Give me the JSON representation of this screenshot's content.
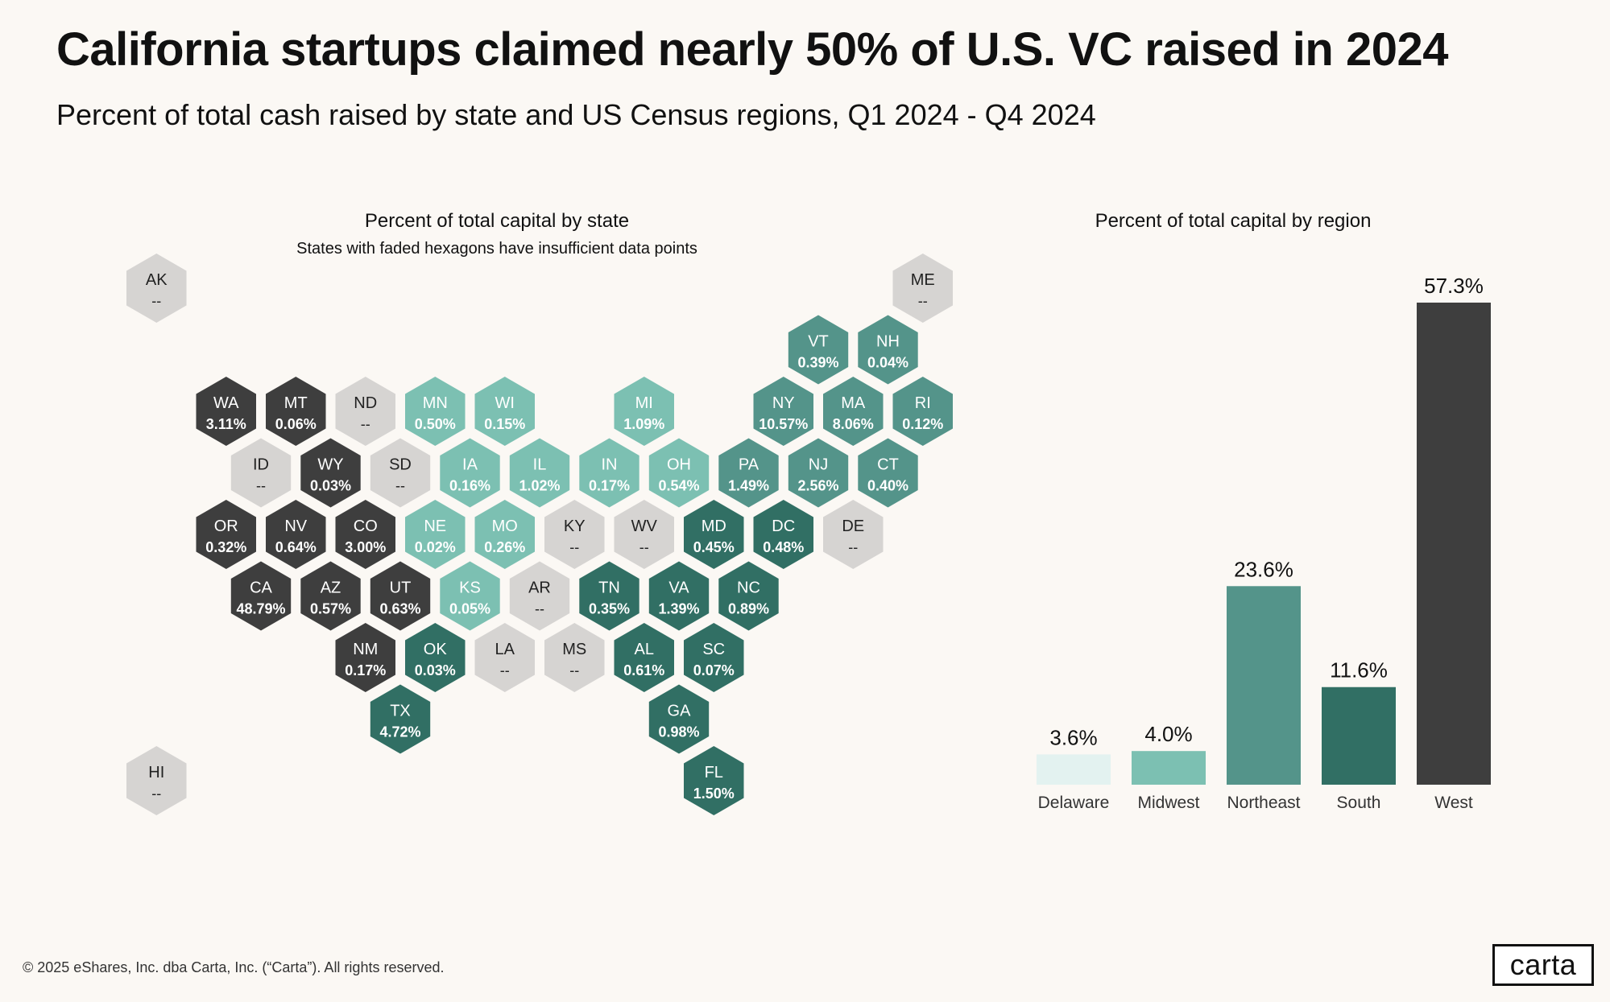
{
  "title": "California startups claimed nearly 50% of U.S. VC raised in 2024",
  "subtitle": "Percent of total cash raised by state and US Census regions, Q1 2024 - Q4 2024",
  "footer": "© 2025 eShares, Inc. dba Carta, Inc. (“Carta”). All rights reserved.",
  "logo_text": "carta",
  "colors": {
    "west": "#3e3e3e",
    "midwest": "#7cc0b2",
    "northeast": "#54948a",
    "south": "#316f64",
    "delaware": "#e3f2f0",
    "insufficient": "#d6d4d2",
    "background": "#fbf8f4"
  },
  "chart_data": [
    {
      "type": "hexmap",
      "title": "Percent of total capital by state",
      "subtitle": "States with faded hexagons have insufficient data points",
      "missing_label": "--",
      "states": [
        {
          "code": "AK",
          "value": null,
          "region": "insufficient",
          "row": 0,
          "col": 0.5
        },
        {
          "code": "ME",
          "value": null,
          "region": "insufficient",
          "row": 0,
          "col": 11.5
        },
        {
          "code": "VT",
          "value": "0.39%",
          "region": "northeast",
          "row": 1,
          "col": 10
        },
        {
          "code": "NH",
          "value": "0.04%",
          "region": "northeast",
          "row": 1,
          "col": 11
        },
        {
          "code": "WA",
          "value": "3.11%",
          "region": "west",
          "row": 2,
          "col": 1.5
        },
        {
          "code": "MT",
          "value": "0.06%",
          "region": "west",
          "row": 2,
          "col": 2.5
        },
        {
          "code": "ND",
          "value": null,
          "region": "insufficient",
          "row": 2,
          "col": 3.5
        },
        {
          "code": "MN",
          "value": "0.50%",
          "region": "midwest",
          "row": 2,
          "col": 4.5
        },
        {
          "code": "WI",
          "value": "0.15%",
          "region": "midwest",
          "row": 2,
          "col": 5.5
        },
        {
          "code": "MI",
          "value": "1.09%",
          "region": "midwest",
          "row": 2,
          "col": 7.5
        },
        {
          "code": "NY",
          "value": "10.57%",
          "region": "northeast",
          "row": 2,
          "col": 9.5
        },
        {
          "code": "MA",
          "value": "8.06%",
          "region": "northeast",
          "row": 2,
          "col": 10.5
        },
        {
          "code": "RI",
          "value": "0.12%",
          "region": "northeast",
          "row": 2,
          "col": 11.5
        },
        {
          "code": "ID",
          "value": null,
          "region": "insufficient",
          "row": 3,
          "col": 2
        },
        {
          "code": "WY",
          "value": "0.03%",
          "region": "west",
          "row": 3,
          "col": 3
        },
        {
          "code": "SD",
          "value": null,
          "region": "insufficient",
          "row": 3,
          "col": 4
        },
        {
          "code": "IA",
          "value": "0.16%",
          "region": "midwest",
          "row": 3,
          "col": 5
        },
        {
          "code": "IL",
          "value": "1.02%",
          "region": "midwest",
          "row": 3,
          "col": 6
        },
        {
          "code": "IN",
          "value": "0.17%",
          "region": "midwest",
          "row": 3,
          "col": 7
        },
        {
          "code": "OH",
          "value": "0.54%",
          "region": "midwest",
          "row": 3,
          "col": 8
        },
        {
          "code": "PA",
          "value": "1.49%",
          "region": "northeast",
          "row": 3,
          "col": 9
        },
        {
          "code": "NJ",
          "value": "2.56%",
          "region": "northeast",
          "row": 3,
          "col": 10
        },
        {
          "code": "CT",
          "value": "0.40%",
          "region": "northeast",
          "row": 3,
          "col": 11
        },
        {
          "code": "OR",
          "value": "0.32%",
          "region": "west",
          "row": 4,
          "col": 1.5
        },
        {
          "code": "NV",
          "value": "0.64%",
          "region": "west",
          "row": 4,
          "col": 2.5
        },
        {
          "code": "CO",
          "value": "3.00%",
          "region": "west",
          "row": 4,
          "col": 3.5
        },
        {
          "code": "NE",
          "value": "0.02%",
          "region": "midwest",
          "row": 4,
          "col": 4.5
        },
        {
          "code": "MO",
          "value": "0.26%",
          "region": "midwest",
          "row": 4,
          "col": 5.5
        },
        {
          "code": "KY",
          "value": null,
          "region": "insufficient",
          "row": 4,
          "col": 6.5
        },
        {
          "code": "WV",
          "value": null,
          "region": "insufficient",
          "row": 4,
          "col": 7.5
        },
        {
          "code": "MD",
          "value": "0.45%",
          "region": "south",
          "row": 4,
          "col": 8.5
        },
        {
          "code": "DC",
          "value": "0.48%",
          "region": "south",
          "row": 4,
          "col": 9.5
        },
        {
          "code": "DE",
          "value": null,
          "region": "insufficient",
          "row": 4,
          "col": 10.5
        },
        {
          "code": "CA",
          "value": "48.79%",
          "region": "west",
          "row": 5,
          "col": 2
        },
        {
          "code": "AZ",
          "value": "0.57%",
          "region": "west",
          "row": 5,
          "col": 3
        },
        {
          "code": "UT",
          "value": "0.63%",
          "region": "west",
          "row": 5,
          "col": 4
        },
        {
          "code": "KS",
          "value": "0.05%",
          "region": "midwest",
          "row": 5,
          "col": 5
        },
        {
          "code": "AR",
          "value": null,
          "region": "insufficient",
          "row": 5,
          "col": 6
        },
        {
          "code": "TN",
          "value": "0.35%",
          "region": "south",
          "row": 5,
          "col": 7
        },
        {
          "code": "VA",
          "value": "1.39%",
          "region": "south",
          "row": 5,
          "col": 8
        },
        {
          "code": "NC",
          "value": "0.89%",
          "region": "south",
          "row": 5,
          "col": 9
        },
        {
          "code": "NM",
          "value": "0.17%",
          "region": "west",
          "row": 6,
          "col": 3.5
        },
        {
          "code": "OK",
          "value": "0.03%",
          "region": "south",
          "row": 6,
          "col": 4.5
        },
        {
          "code": "LA",
          "value": null,
          "region": "insufficient",
          "row": 6,
          "col": 5.5
        },
        {
          "code": "MS",
          "value": null,
          "region": "insufficient",
          "row": 6,
          "col": 6.5
        },
        {
          "code": "AL",
          "value": "0.61%",
          "region": "south",
          "row": 6,
          "col": 7.5
        },
        {
          "code": "SC",
          "value": "0.07%",
          "region": "south",
          "row": 6,
          "col": 8.5
        },
        {
          "code": "TX",
          "value": "4.72%",
          "region": "south",
          "row": 7,
          "col": 4
        },
        {
          "code": "GA",
          "value": "0.98%",
          "region": "south",
          "row": 7,
          "col": 8
        },
        {
          "code": "HI",
          "value": null,
          "region": "insufficient",
          "row": 8,
          "col": 0.5
        },
        {
          "code": "FL",
          "value": "1.50%",
          "region": "south",
          "row": 8,
          "col": 8.5
        }
      ]
    },
    {
      "type": "bar",
      "title": "Percent of total capital by region",
      "categories": [
        "Delaware",
        "Midwest",
        "Northeast",
        "South",
        "West"
      ],
      "values": [
        3.6,
        4.0,
        23.6,
        11.6,
        57.3
      ],
      "labels": [
        "3.6%",
        "4.0%",
        "23.6%",
        "11.6%",
        "57.3%"
      ],
      "colors": [
        "#e3f2f0",
        "#7cc0b2",
        "#54948a",
        "#316f64",
        "#3e3e3e"
      ],
      "ylim": [
        0,
        57.3
      ]
    }
  ]
}
